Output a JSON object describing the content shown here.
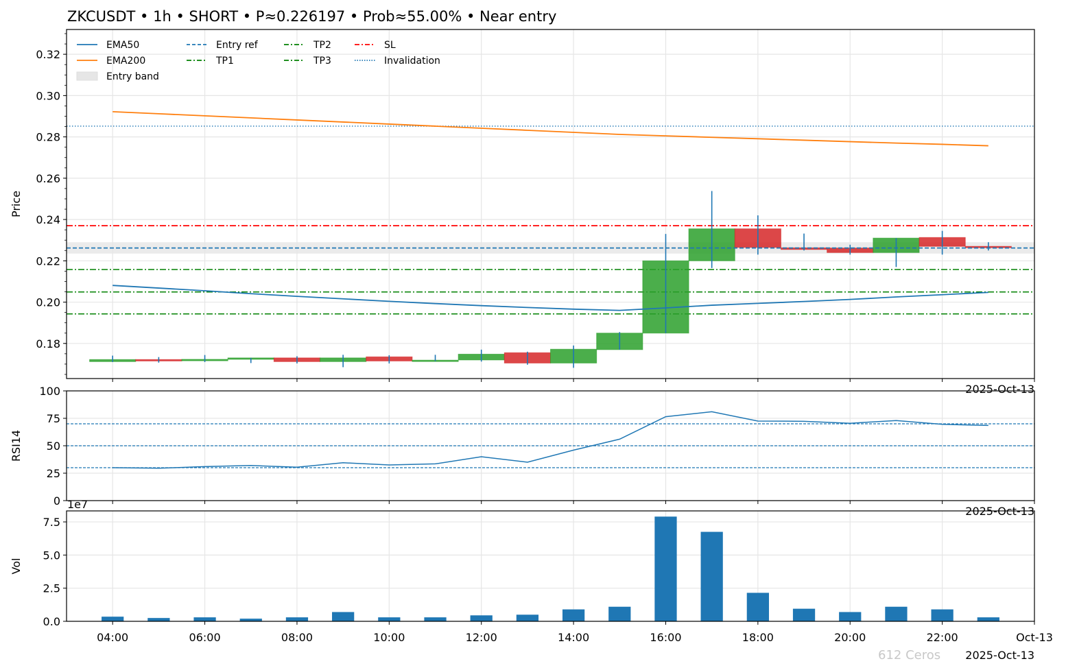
{
  "chart_data": [
    {
      "type": "candlestick",
      "title": "ZKCUSDT • 1h • SHORT • P≈0.226197 • Prob≈55.00% • Near entry",
      "ylabel": "Price",
      "ylim": [
        0.163,
        0.332
      ],
      "xlim_hours": [
        3,
        24
      ],
      "yticks": [
        "0.18",
        "0.20",
        "0.22",
        "0.24",
        "0.26",
        "0.28",
        "0.30",
        "0.32"
      ],
      "date_label": "2025-Oct-13",
      "hours": [
        4,
        5,
        6,
        7,
        8,
        9,
        10,
        11,
        12,
        13,
        14,
        15,
        16,
        17,
        18,
        19,
        20,
        21,
        22,
        23
      ],
      "open": [
        0.1712,
        0.1722,
        0.1716,
        0.1723,
        0.173,
        0.1712,
        0.1735,
        0.1714,
        0.172,
        0.1755,
        0.1705,
        0.177,
        0.185,
        0.22,
        0.2355,
        0.2263,
        0.2262,
        0.224,
        0.2313,
        0.227
      ],
      "high": [
        0.1741,
        0.1734,
        0.1744,
        0.173,
        0.1738,
        0.1745,
        0.1743,
        0.1745,
        0.177,
        0.176,
        0.179,
        0.1855,
        0.233,
        0.2538,
        0.242,
        0.2332,
        0.2278,
        0.231,
        0.2345,
        0.229
      ],
      "low": [
        0.171,
        0.1707,
        0.171,
        0.1705,
        0.1703,
        0.1685,
        0.1703,
        0.1714,
        0.1712,
        0.1697,
        0.1682,
        0.177,
        0.185,
        0.2165,
        0.223,
        0.225,
        0.223,
        0.217,
        0.223,
        0.225
      ],
      "close": [
        0.1722,
        0.1715,
        0.1723,
        0.173,
        0.1712,
        0.173,
        0.1715,
        0.1719,
        0.1748,
        0.1705,
        0.1772,
        0.185,
        0.22,
        0.2355,
        0.2265,
        0.2255,
        0.224,
        0.231,
        0.227,
        0.2265
      ],
      "ema50": [
        0.2081,
        0.2068,
        0.2055,
        0.2041,
        0.2028,
        0.2016,
        0.2004,
        0.1993,
        0.1983,
        0.1974,
        0.1966,
        0.196,
        0.1972,
        0.1985,
        0.1994,
        0.2003,
        0.2013,
        0.2025,
        0.2036,
        0.2047
      ],
      "ema200": [
        0.2922,
        0.2912,
        0.2902,
        0.2892,
        0.2882,
        0.2872,
        0.2862,
        0.2852,
        0.2842,
        0.2832,
        0.2822,
        0.2812,
        0.2805,
        0.2798,
        0.2791,
        0.2784,
        0.2777,
        0.277,
        0.2764,
        0.2757
      ],
      "levels": {
        "entry_ref": 0.226197,
        "entry_band": [
          0.2235,
          0.229
        ],
        "tp1": 0.2158,
        "tp2": 0.2049,
        "tp3": 0.1943,
        "sl": 0.237,
        "invalidation": 0.2852
      },
      "legend": [
        "EMA50",
        "Entry ref",
        "TP2",
        "SL",
        "EMA200",
        "TP1",
        "TP3",
        "Invalidation",
        "Entry band"
      ],
      "legend_placement": "top-left",
      "grid": true
    },
    {
      "type": "line",
      "ylabel": "RSI14",
      "ylim": [
        0,
        100
      ],
      "yticks": [
        "0",
        "25",
        "50",
        "75",
        "100"
      ],
      "date_label": "2025-Oct-13",
      "rsi": [
        30,
        29.5,
        31,
        32,
        30.5,
        34.5,
        32.5,
        33.5,
        40,
        35,
        46,
        56,
        76.5,
        81,
        72.5,
        72.3,
        70.5,
        73,
        69.5,
        68.5
      ],
      "reference_lines": [
        30,
        50,
        70
      ],
      "grid": true
    },
    {
      "type": "bar",
      "ylabel": "Vol",
      "offset_label": "1e7",
      "ylim": [
        0,
        8.33
      ],
      "yticks": [
        "0.0",
        "2.5",
        "5.0",
        "7.5"
      ],
      "volume_1e7": [
        0.35,
        0.25,
        0.3,
        0.2,
        0.3,
        0.7,
        0.3,
        0.3,
        0.45,
        0.5,
        0.9,
        1.1,
        7.9,
        6.75,
        2.15,
        0.95,
        0.7,
        1.1,
        0.9,
        0.3
      ],
      "xticks": [
        "04:00",
        "06:00",
        "08:00",
        "10:00",
        "12:00",
        "14:00",
        "16:00",
        "18:00",
        "20:00",
        "22:00",
        "Oct-13"
      ],
      "date_label": "2025-Oct-13",
      "grid": true
    }
  ],
  "colors": {
    "up": "#2ca02c",
    "down": "#d62728",
    "wick": "#1f77b4",
    "ema50": "#1f77b4",
    "ema200": "#ff7f0e",
    "tp": "#008000",
    "sl": "#ff0000",
    "band": "#e6e6e6"
  },
  "watermark": "612 Ceros"
}
